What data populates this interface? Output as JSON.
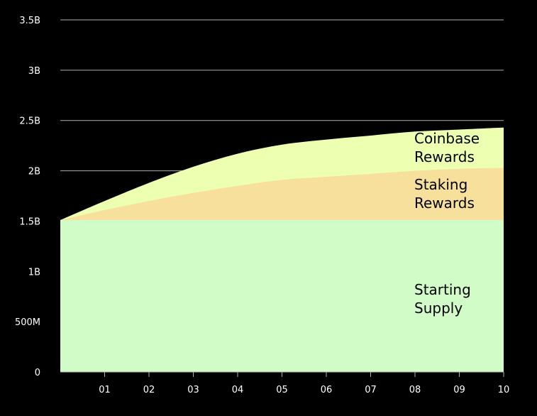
{
  "chart_data": {
    "type": "area",
    "stacked": true,
    "x": [
      0,
      1,
      2,
      3,
      4,
      5,
      6,
      7,
      8,
      9,
      10
    ],
    "x_tick_labels": [
      "01",
      "02",
      "03",
      "04",
      "05",
      "06",
      "07",
      "08",
      "09",
      "10"
    ],
    "x_tick_values": [
      1,
      2,
      3,
      4,
      5,
      6,
      7,
      8,
      9,
      10
    ],
    "xlim": [
      0,
      10
    ],
    "y_tick_labels": [
      "0",
      "500M",
      "1B",
      "1.5B",
      "2B",
      "2.5B",
      "3B",
      "3.5B"
    ],
    "y_tick_values": [
      0,
      500000000,
      1000000000,
      1500000000,
      2000000000,
      2500000000,
      3000000000,
      3500000000
    ],
    "ylim": [
      0,
      3500000000
    ],
    "grid": true,
    "series": [
      {
        "name": "Starting Supply",
        "label_lines": [
          "Starting",
          "Supply"
        ],
        "color": "#d1fcc8",
        "values": [
          1510000000,
          1510000000,
          1510000000,
          1510000000,
          1510000000,
          1510000000,
          1510000000,
          1510000000,
          1510000000,
          1510000000,
          1510000000
        ]
      },
      {
        "name": "Staking Rewards",
        "label_lines": [
          "Staking",
          "Rewards"
        ],
        "color": "#f7e09c",
        "values": [
          0,
          100000000,
          190000000,
          270000000,
          340000000,
          400000000,
          430000000,
          460000000,
          490000000,
          510000000,
          520000000
        ]
      },
      {
        "name": "Coinbase Rewards",
        "label_lines": [
          "Coinbase",
          "Rewards"
        ],
        "color": "#edffb0",
        "values": [
          0,
          90000000,
          180000000,
          260000000,
          320000000,
          350000000,
          370000000,
          380000000,
          390000000,
          390000000,
          400000000
        ]
      }
    ]
  },
  "colors": {
    "background": "#000000",
    "grid": "#b0b0b0",
    "text": "#ffffff",
    "label_text": "#000000"
  }
}
